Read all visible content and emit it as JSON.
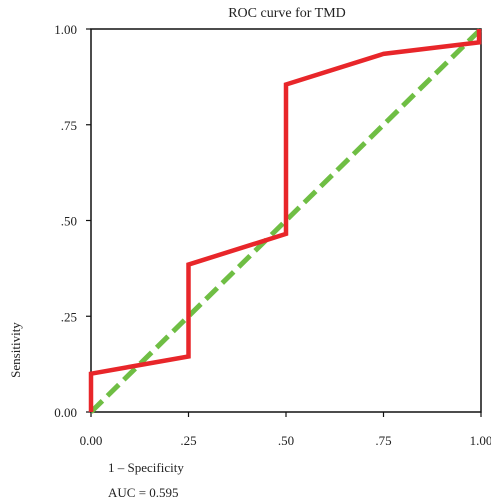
{
  "chart_data": {
    "type": "line",
    "title": "ROC curve for TMD",
    "xlabel": "1 – Specificity",
    "ylabel": "Sensitivity",
    "annotation": "AUC = 0.595",
    "xlim": [
      0,
      1
    ],
    "ylim": [
      0,
      1
    ],
    "x_ticks": [
      0,
      0.25,
      0.5,
      0.75,
      1
    ],
    "x_tick_labels": [
      "0.00",
      ".25",
      ".50",
      ".75",
      "1.00"
    ],
    "y_ticks": [
      0,
      0.25,
      0.5,
      0.75,
      1
    ],
    "y_tick_labels": [
      "0.00",
      ".25",
      ".50",
      ".75",
      "1.00"
    ],
    "grid": false,
    "series": [
      {
        "color": "#e8262a",
        "style": "solid",
        "points": [
          [
            0.0,
            0.0
          ],
          [
            0.0,
            0.1
          ],
          [
            0.25,
            0.145
          ],
          [
            0.25,
            0.385
          ],
          [
            0.5,
            0.465
          ],
          [
            0.5,
            0.855
          ],
          [
            0.75,
            0.935
          ],
          [
            0.995,
            0.965
          ],
          [
            0.995,
            1.0
          ]
        ]
      },
      {
        "color": "#6fbe44",
        "style": "dashed",
        "points": [
          [
            0.0,
            0.0
          ],
          [
            1.0,
            1.0
          ]
        ]
      }
    ]
  }
}
